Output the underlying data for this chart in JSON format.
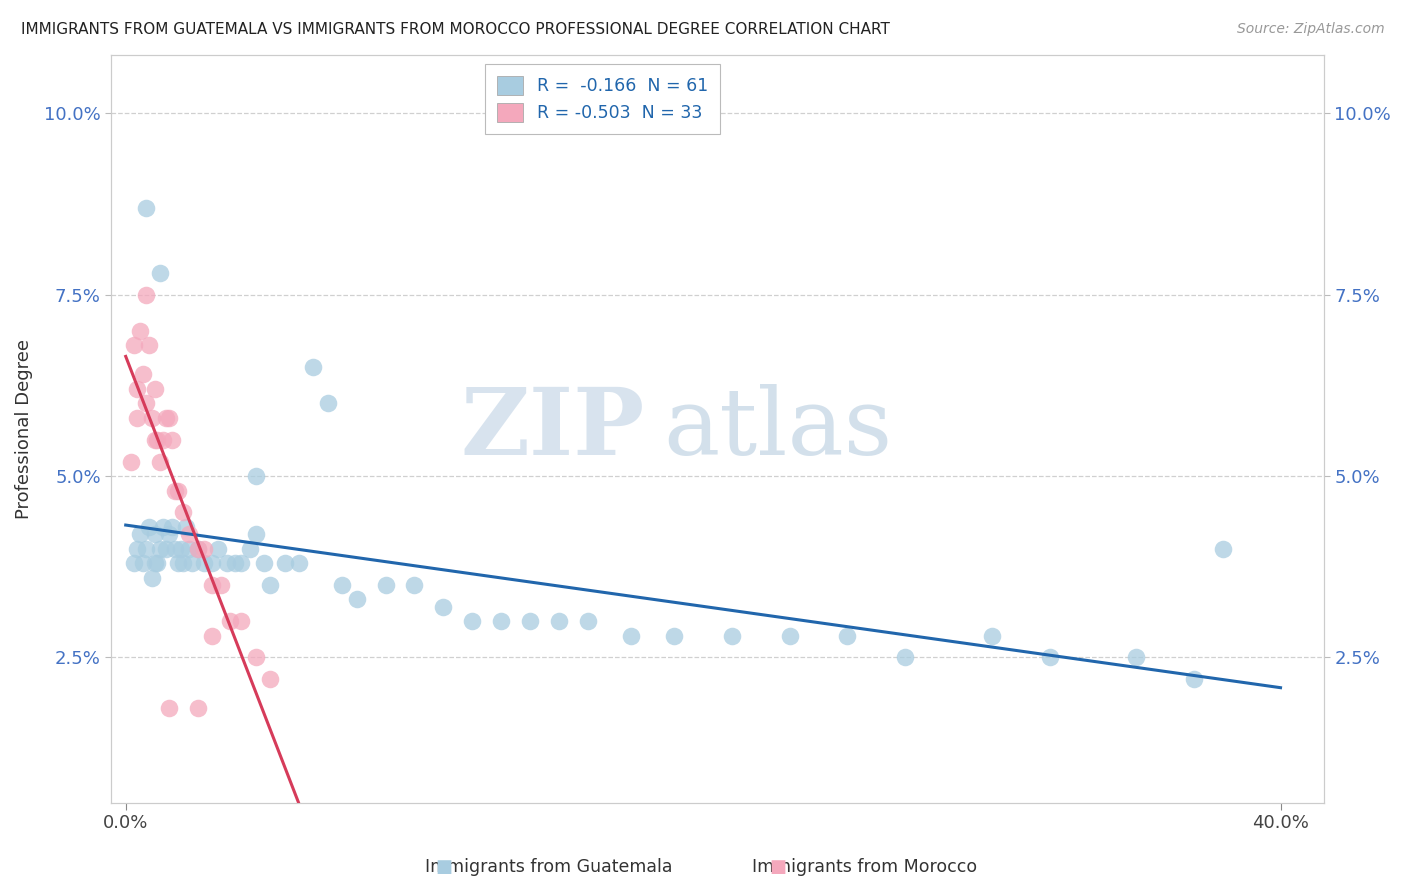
{
  "title": "IMMIGRANTS FROM GUATEMALA VS IMMIGRANTS FROM MOROCCO PROFESSIONAL DEGREE CORRELATION CHART",
  "source": "Source: ZipAtlas.com",
  "ylabel": "Professional Degree",
  "ytick_vals": [
    0.025,
    0.05,
    0.075,
    0.1
  ],
  "ytick_labels": [
    "2.5%",
    "5.0%",
    "7.5%",
    "10.0%"
  ],
  "xtick_vals": [
    0.0,
    0.4
  ],
  "xtick_labels": [
    "0.0%",
    "40.0%"
  ],
  "xlim": [
    -0.005,
    0.415
  ],
  "ylim": [
    0.005,
    0.108
  ],
  "legend_r1": "R =  -0.166  N = 61",
  "legend_r2": "R = -0.503  N = 33",
  "color_blue": "#a8cce0",
  "color_pink": "#f4a8bc",
  "color_blue_line": "#2166ac",
  "color_pink_line": "#d63b5a",
  "bottom_label1": "Immigrants from Guatemala",
  "bottom_label2": "Immigrants from Morocco",
  "guat_x": [
    0.003,
    0.004,
    0.005,
    0.006,
    0.007,
    0.008,
    0.009,
    0.01,
    0.01,
    0.011,
    0.012,
    0.013,
    0.014,
    0.015,
    0.016,
    0.017,
    0.018,
    0.019,
    0.02,
    0.021,
    0.022,
    0.023,
    0.025,
    0.027,
    0.03,
    0.032,
    0.035,
    0.038,
    0.04,
    0.043,
    0.045,
    0.048,
    0.05,
    0.055,
    0.06,
    0.065,
    0.07,
    0.075,
    0.08,
    0.09,
    0.1,
    0.11,
    0.12,
    0.13,
    0.14,
    0.15,
    0.16,
    0.175,
    0.19,
    0.21,
    0.23,
    0.25,
    0.27,
    0.3,
    0.32,
    0.35,
    0.37,
    0.007,
    0.012,
    0.045,
    0.38
  ],
  "guat_y": [
    0.038,
    0.04,
    0.042,
    0.038,
    0.04,
    0.043,
    0.036,
    0.042,
    0.038,
    0.038,
    0.04,
    0.043,
    0.04,
    0.042,
    0.043,
    0.04,
    0.038,
    0.04,
    0.038,
    0.043,
    0.04,
    0.038,
    0.04,
    0.038,
    0.038,
    0.04,
    0.038,
    0.038,
    0.038,
    0.04,
    0.042,
    0.038,
    0.035,
    0.038,
    0.038,
    0.065,
    0.06,
    0.035,
    0.033,
    0.035,
    0.035,
    0.032,
    0.03,
    0.03,
    0.03,
    0.03,
    0.03,
    0.028,
    0.028,
    0.028,
    0.028,
    0.028,
    0.025,
    0.028,
    0.025,
    0.025,
    0.022,
    0.087,
    0.078,
    0.05,
    0.04
  ],
  "mor_x": [
    0.002,
    0.003,
    0.004,
    0.004,
    0.005,
    0.006,
    0.007,
    0.007,
    0.008,
    0.009,
    0.01,
    0.01,
    0.011,
    0.012,
    0.013,
    0.014,
    0.015,
    0.016,
    0.017,
    0.018,
    0.02,
    0.022,
    0.025,
    0.027,
    0.03,
    0.033,
    0.036,
    0.04,
    0.045,
    0.05,
    0.03,
    0.025,
    0.015
  ],
  "mor_y": [
    0.052,
    0.068,
    0.058,
    0.062,
    0.07,
    0.064,
    0.06,
    0.075,
    0.068,
    0.058,
    0.055,
    0.062,
    0.055,
    0.052,
    0.055,
    0.058,
    0.058,
    0.055,
    0.048,
    0.048,
    0.045,
    0.042,
    0.04,
    0.04,
    0.035,
    0.035,
    0.03,
    0.03,
    0.025,
    0.022,
    0.028,
    0.018,
    0.018
  ]
}
